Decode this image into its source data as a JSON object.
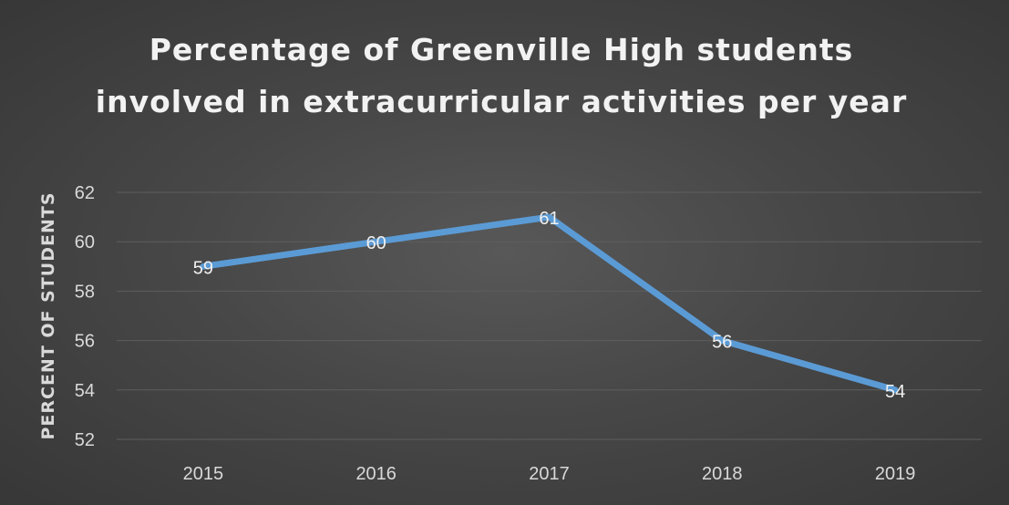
{
  "chart_data": {
    "type": "line",
    "title": "Percentage of Greenville High students involved in extracurricular activities per year",
    "xlabel": "",
    "ylabel": "PERCENT OF STUDENTS",
    "categories": [
      "2015",
      "2016",
      "2017",
      "2018",
      "2019"
    ],
    "series": [
      {
        "values": [
          59,
          60,
          61,
          56,
          54
        ],
        "color": "#5b9bd5"
      }
    ],
    "ylim": [
      52,
      62
    ],
    "yticks": [
      52,
      54,
      56,
      58,
      60,
      62
    ],
    "grid": true,
    "data_labels": true,
    "legend": "none"
  }
}
